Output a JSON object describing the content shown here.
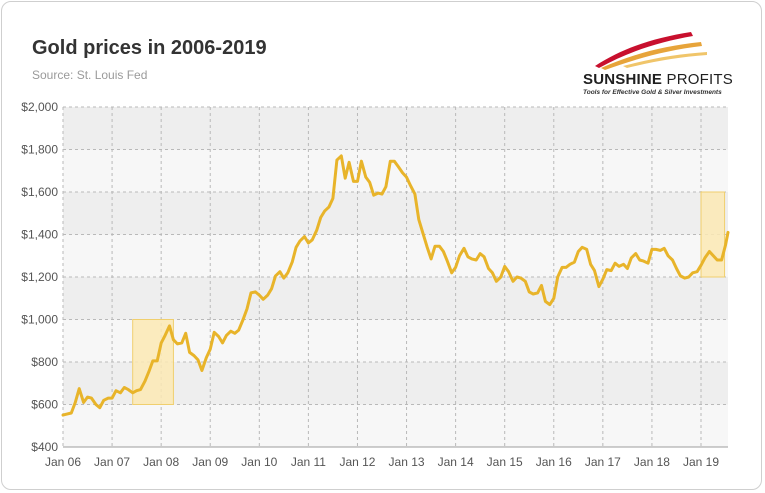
{
  "header": {
    "title": "Gold prices in 2006-2019",
    "subtitle": "Source: St. Louis Fed"
  },
  "logo": {
    "name_bold": "SUNSHINE",
    "name_light": "PROFITS",
    "tagline": "Tools for Effective Gold & Silver Investments"
  },
  "colors": {
    "line": "#e8b42a",
    "highlight_fill": "#fbe9b4",
    "highlight_stroke": "#f0cf6e",
    "band_dark": "#eeeeee",
    "band_light": "#f7f7f7"
  },
  "chart_data": {
    "type": "line",
    "x_tick_labels": [
      "Jan 06",
      "Jan 07",
      "Jan 08",
      "Jan 09",
      "Jan 10",
      "Jan 11",
      "Jan 12",
      "Jan 13",
      "Jan 14",
      "Jan 15",
      "Jan 16",
      "Jan 17",
      "Jan 18",
      "Jan 19"
    ],
    "y_tick_labels": [
      "$400",
      "$600",
      "$800",
      "$1,000",
      "$1,200",
      "$1,400",
      "$1,600",
      "$1,800",
      "$2,000"
    ],
    "xlim": [
      2006.0,
      2019.55
    ],
    "ylim": [
      400,
      2000
    ],
    "y_ticks": [
      400,
      600,
      800,
      1000,
      1200,
      1400,
      1600,
      1800,
      2000
    ],
    "grid": "dashed",
    "legend": "none",
    "series": [
      {
        "x": [
          2006.0,
          2006.08,
          2006.17,
          2006.25,
          2006.33,
          2006.42,
          2006.5,
          2006.58,
          2006.67,
          2006.75,
          2006.83,
          2006.92,
          2007.0,
          2007.08,
          2007.17,
          2007.25,
          2007.33,
          2007.42,
          2007.5,
          2007.58,
          2007.67,
          2007.75,
          2007.83,
          2007.92,
          2008.0,
          2008.08,
          2008.17,
          2008.25,
          2008.33,
          2008.42,
          2008.5,
          2008.58,
          2008.67,
          2008.75,
          2008.83,
          2008.92,
          2009.0,
          2009.08,
          2009.17,
          2009.25,
          2009.33,
          2009.42,
          2009.5,
          2009.58,
          2009.67,
          2009.75,
          2009.83,
          2009.92,
          2010.0,
          2010.08,
          2010.17,
          2010.25,
          2010.33,
          2010.42,
          2010.5,
          2010.58,
          2010.67,
          2010.75,
          2010.83,
          2010.92,
          2011.0,
          2011.08,
          2011.17,
          2011.25,
          2011.33,
          2011.42,
          2011.5,
          2011.58,
          2011.67,
          2011.75,
          2011.83,
          2011.92,
          2012.0,
          2012.08,
          2012.17,
          2012.25,
          2012.33,
          2012.42,
          2012.5,
          2012.58,
          2012.67,
          2012.75,
          2012.83,
          2012.92,
          2013.0,
          2013.08,
          2013.17,
          2013.25,
          2013.33,
          2013.42,
          2013.5,
          2013.58,
          2013.67,
          2013.75,
          2013.83,
          2013.92,
          2014.0,
          2014.08,
          2014.17,
          2014.25,
          2014.33,
          2014.42,
          2014.5,
          2014.58,
          2014.67,
          2014.75,
          2014.83,
          2014.92,
          2015.0,
          2015.08,
          2015.17,
          2015.25,
          2015.33,
          2015.42,
          2015.5,
          2015.58,
          2015.67,
          2015.75,
          2015.83,
          2015.92,
          2016.0,
          2016.08,
          2016.17,
          2016.25,
          2016.33,
          2016.42,
          2016.5,
          2016.58,
          2016.67,
          2016.75,
          2016.83,
          2016.92,
          2017.0,
          2017.08,
          2017.17,
          2017.25,
          2017.33,
          2017.42,
          2017.5,
          2017.58,
          2017.67,
          2017.75,
          2017.83,
          2017.92,
          2018.0,
          2018.08,
          2018.17,
          2018.25,
          2018.33,
          2018.42,
          2018.5,
          2018.58,
          2018.67,
          2018.75,
          2018.83,
          2018.92,
          2019.0,
          2019.08,
          2019.17,
          2019.25,
          2019.33,
          2019.42,
          2019.5,
          2019.55
        ],
        "y": [
          550,
          555,
          560,
          610,
          675,
          610,
          635,
          630,
          600,
          585,
          620,
          630,
          630,
          665,
          655,
          680,
          670,
          655,
          665,
          670,
          710,
          755,
          805,
          805,
          890,
          925,
          970,
          905,
          885,
          890,
          935,
          845,
          830,
          810,
          760,
          820,
          860,
          940,
          920,
          890,
          925,
          945,
          935,
          950,
          1000,
          1050,
          1125,
          1130,
          1115,
          1095,
          1115,
          1145,
          1205,
          1225,
          1195,
          1220,
          1270,
          1340,
          1370,
          1390,
          1360,
          1375,
          1420,
          1480,
          1510,
          1530,
          1570,
          1750,
          1770,
          1665,
          1740,
          1650,
          1650,
          1745,
          1670,
          1645,
          1585,
          1595,
          1590,
          1625,
          1745,
          1745,
          1720,
          1690,
          1670,
          1630,
          1590,
          1470,
          1410,
          1340,
          1285,
          1345,
          1345,
          1320,
          1275,
          1220,
          1245,
          1300,
          1335,
          1295,
          1285,
          1280,
          1310,
          1295,
          1240,
          1220,
          1180,
          1200,
          1250,
          1225,
          1180,
          1200,
          1195,
          1180,
          1130,
          1120,
          1125,
          1160,
          1085,
          1070,
          1100,
          1200,
          1245,
          1245,
          1260,
          1270,
          1320,
          1340,
          1330,
          1260,
          1230,
          1155,
          1190,
          1235,
          1230,
          1265,
          1250,
          1260,
          1240,
          1290,
          1310,
          1280,
          1275,
          1265,
          1330,
          1330,
          1325,
          1335,
          1300,
          1280,
          1240,
          1205,
          1195,
          1200,
          1220,
          1225,
          1255,
          1290,
          1320,
          1300,
          1280,
          1280,
          1350,
          1410
        ]
      }
    ],
    "highlights": [
      {
        "x0": 2007.42,
        "x1": 2008.25,
        "y0": 600,
        "y1": 1000
      },
      {
        "x0": 2019.0,
        "x1": 2019.48,
        "y0": 1200,
        "y1": 1600
      }
    ]
  }
}
